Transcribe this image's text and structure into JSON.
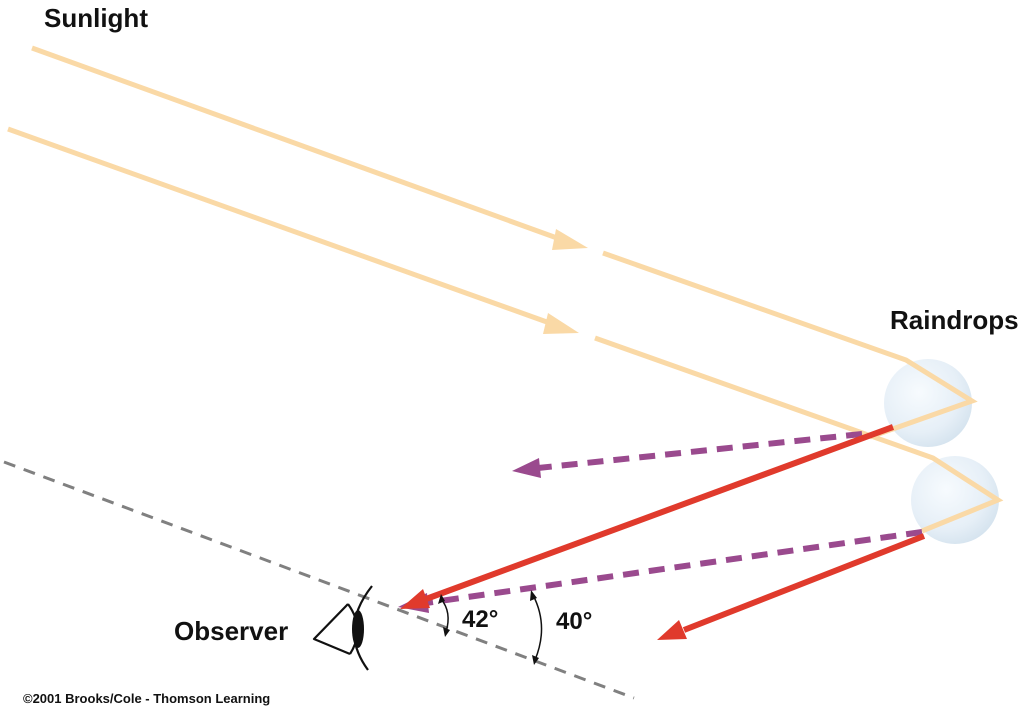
{
  "labels": {
    "sunlight": "Sunlight",
    "raindrops": "Raindrops",
    "observer": "Observer",
    "angle_red": "42°",
    "angle_violet": "40°",
    "credit": "©2001 Brooks/Cole - Thomson Learning"
  },
  "colors": {
    "sunlight": "#FAD9A6",
    "red_ray": "#E03A2C",
    "violet_ray": "#9A4A8E",
    "horizon": "#808080",
    "raindrop": "#E8F1F8"
  },
  "icons": {
    "observer": "eye-icon"
  }
}
